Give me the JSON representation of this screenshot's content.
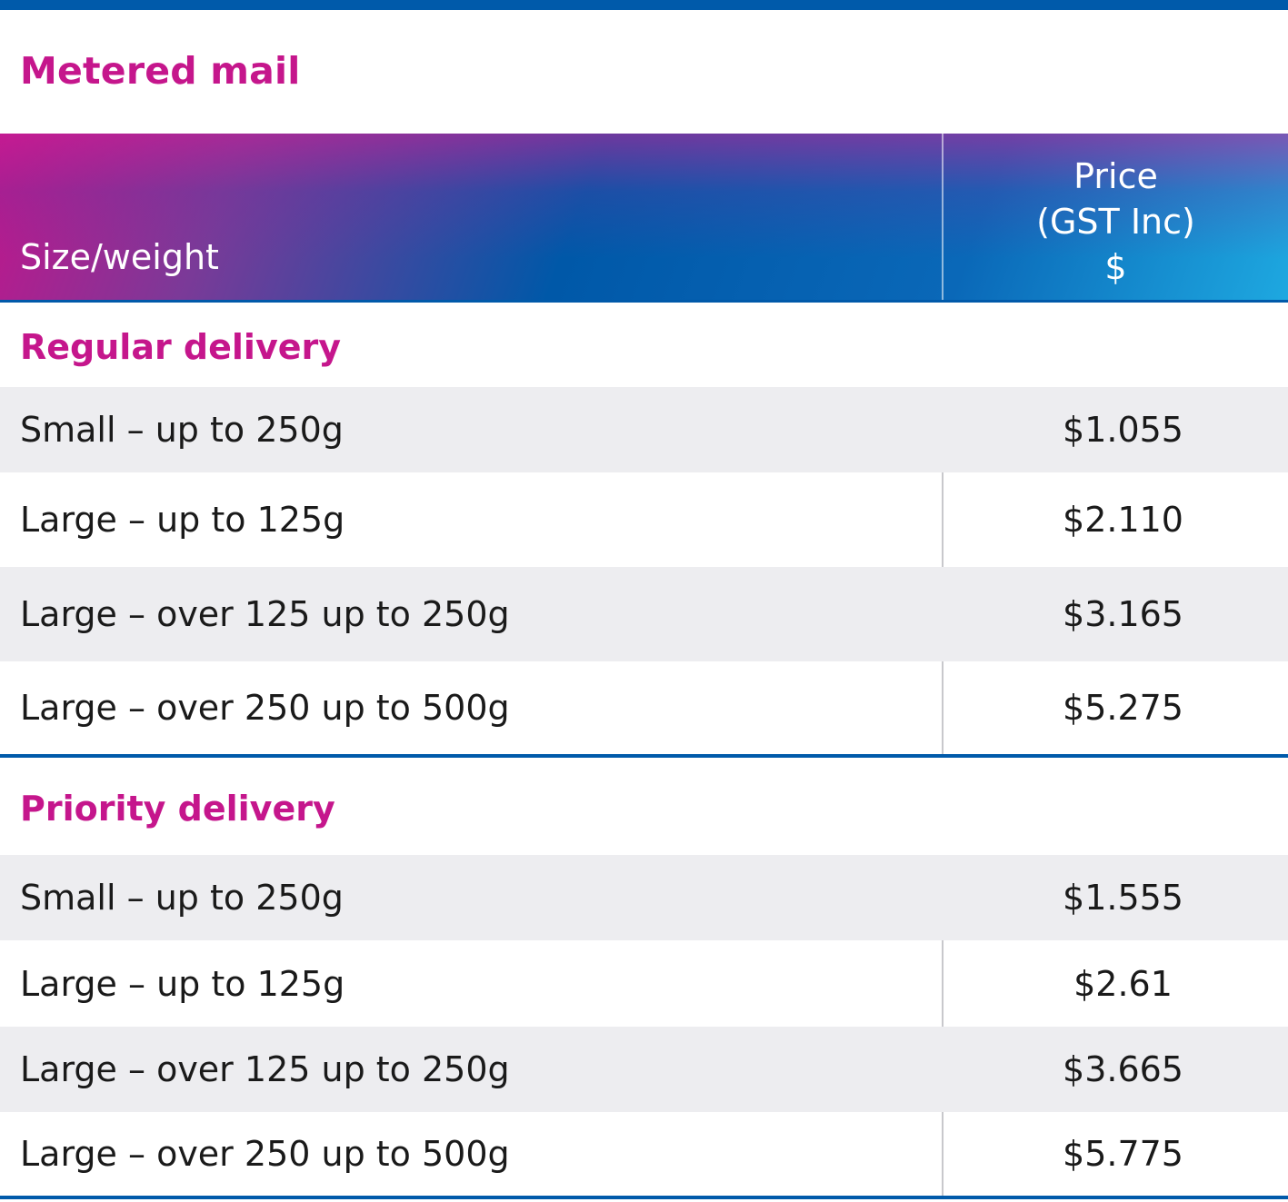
{
  "title": "Metered mail",
  "colors": {
    "accent": "#c5168c",
    "brand_blue": "#005aaa",
    "row_shade": "#ededf0"
  },
  "table": {
    "header": {
      "size_label": "Size/weight",
      "price_label_lines": [
        "Price",
        "(GST Inc)",
        "$"
      ]
    },
    "sections": [
      {
        "title": "Regular delivery",
        "rows": [
          {
            "size": "Small – up to 250g",
            "price": "$1.055"
          },
          {
            "size": "Large – up to 125g",
            "price": "$2.110"
          },
          {
            "size": "Large – over 125 up to 250g",
            "price": "$3.165"
          },
          {
            "size": "Large – over 250 up to 500g",
            "price": "$5.275"
          }
        ]
      },
      {
        "title": "Priority delivery",
        "rows": [
          {
            "size": "Small – up to 250g",
            "price": "$1.555"
          },
          {
            "size": "Large – up to 125g",
            "price": "$2.61"
          },
          {
            "size": "Large – over 125 up to 250g",
            "price": "$3.665"
          },
          {
            "size": "Large – over 250 up to 500g",
            "price": "$5.775"
          }
        ]
      }
    ]
  }
}
